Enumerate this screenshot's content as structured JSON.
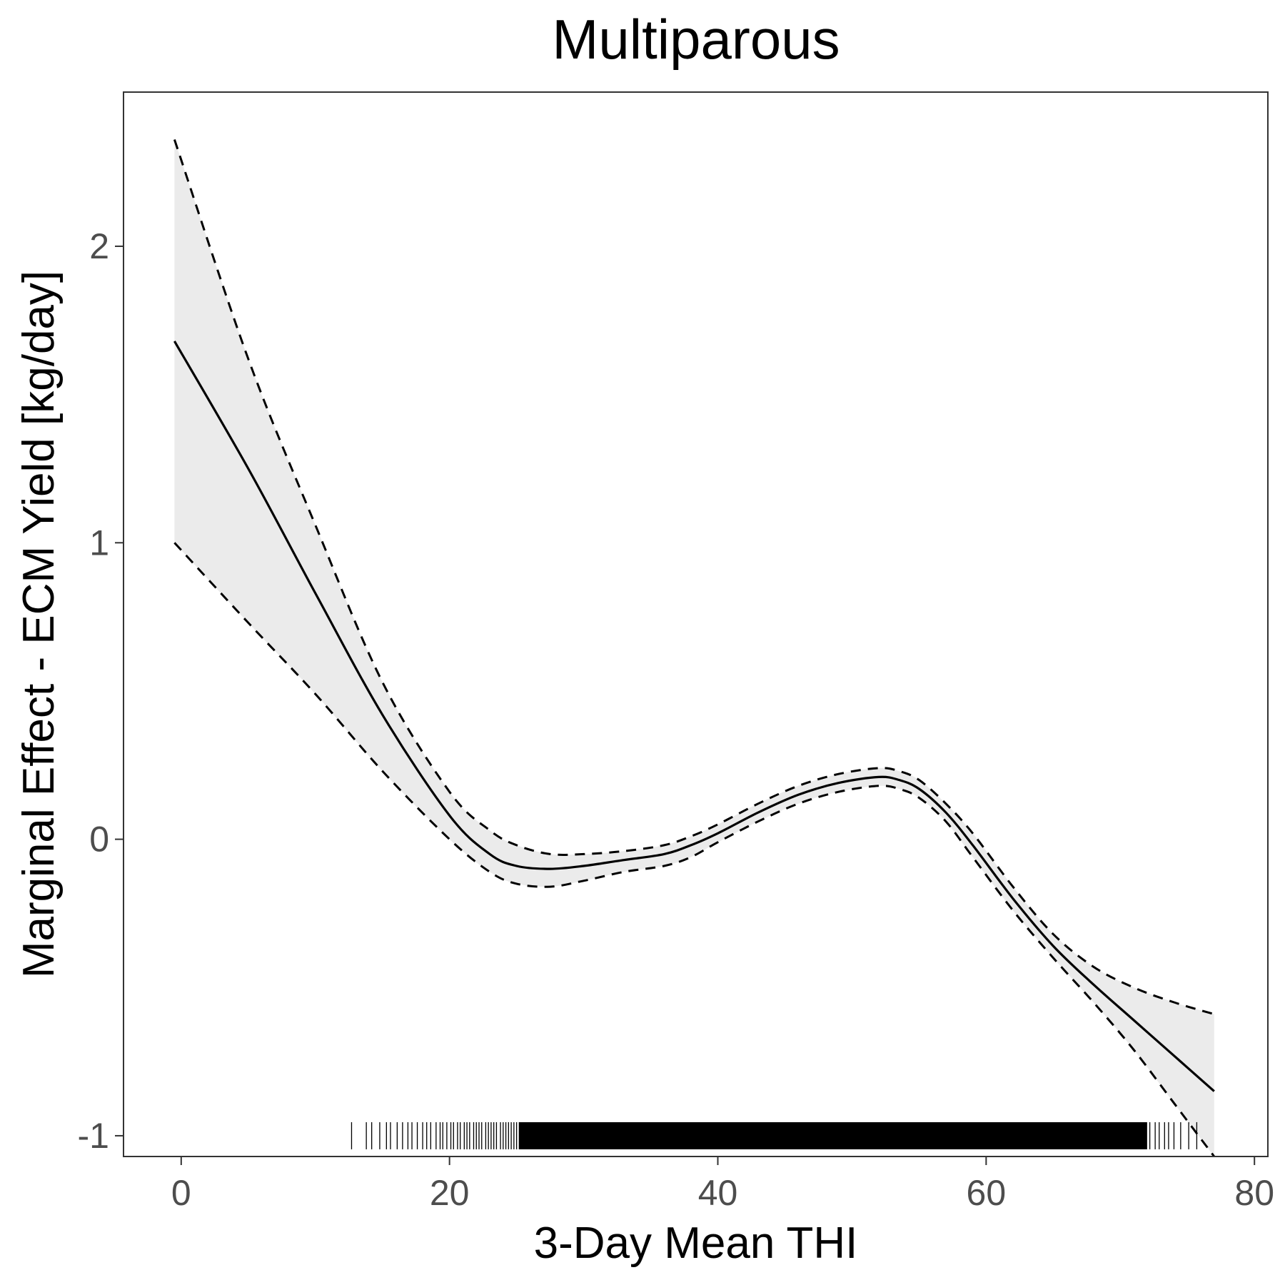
{
  "chart_data": {
    "type": "line",
    "title": "Multiparous",
    "xlabel": "3-Day Mean THI",
    "ylabel": "Marginal Effect - ECM Yield [kg/day]",
    "xlim": [
      -4.3,
      81
    ],
    "ylim": [
      -1.07,
      2.52
    ],
    "x_ticks": [
      "0",
      "20",
      "40",
      "60",
      "80"
    ],
    "x_tick_values": [
      0,
      20,
      40,
      60,
      80
    ],
    "y_ticks": [
      "-1",
      "0",
      "1",
      "2"
    ],
    "y_tick_values": [
      -1,
      0,
      1,
      2
    ],
    "grid": false,
    "legend": "none",
    "colors": {
      "line": "#000000",
      "band": "#ebebeb",
      "tick_label": "#4d4d4d",
      "panel_border": "#333333"
    },
    "x": [
      -0.5,
      5,
      10,
      15,
      20,
      23,
      25,
      27.5,
      30,
      33,
      36,
      38,
      40,
      43,
      46,
      49,
      52,
      53.5,
      55,
      57,
      59,
      62,
      65,
      68,
      71,
      74,
      77
    ],
    "series": [
      {
        "role": "estimate",
        "style": "solid",
        "values": [
          1.68,
          1.25,
          0.83,
          0.42,
          0.08,
          -0.05,
          -0.09,
          -0.1,
          -0.09,
          -0.07,
          -0.05,
          -0.02,
          0.02,
          0.09,
          0.15,
          0.19,
          0.21,
          0.2,
          0.17,
          0.09,
          -0.02,
          -0.2,
          -0.36,
          -0.49,
          -0.61,
          -0.73,
          -0.85
        ]
      },
      {
        "role": "upper_ci",
        "style": "dashed",
        "values": [
          2.36,
          1.62,
          1.06,
          0.53,
          0.16,
          0.03,
          -0.02,
          -0.05,
          -0.05,
          -0.04,
          -0.02,
          0.01,
          0.05,
          0.12,
          0.18,
          0.22,
          0.24,
          0.23,
          0.2,
          0.12,
          0.02,
          -0.16,
          -0.32,
          -0.43,
          -0.5,
          -0.55,
          -0.59
        ]
      },
      {
        "role": "lower_ci",
        "style": "dashed",
        "values": [
          1.0,
          0.73,
          0.49,
          0.23,
          0.0,
          -0.11,
          -0.15,
          -0.16,
          -0.14,
          -0.11,
          -0.09,
          -0.06,
          -0.01,
          0.06,
          0.12,
          0.16,
          0.18,
          0.17,
          0.14,
          0.06,
          -0.06,
          -0.24,
          -0.4,
          -0.55,
          -0.71,
          -0.89,
          -1.07
        ]
      }
    ],
    "rug": {
      "y": -1,
      "x_sparse": [
        12.7,
        13.8,
        14.2,
        14.8,
        15.3,
        15.6,
        16.1,
        16.5,
        16.9,
        17.2,
        17.6,
        18.0,
        18.3,
        18.6,
        19.0,
        19.3,
        19.5,
        19.8,
        20.1,
        20.3,
        20.6,
        20.8,
        21.1,
        21.3,
        21.5,
        21.8,
        22.0,
        22.2,
        22.4,
        22.7,
        22.9,
        23.1,
        23.3,
        23.5,
        23.8,
        24.0,
        24.2,
        24.4,
        24.6,
        24.8,
        25.0,
        25.2
      ],
      "x_dense_range": [
        25.2,
        72.0
      ],
      "x_sparse_high": [
        72.2,
        72.6,
        72.9,
        73.3,
        73.6,
        74.0,
        74.5,
        75.1,
        75.7
      ]
    }
  }
}
